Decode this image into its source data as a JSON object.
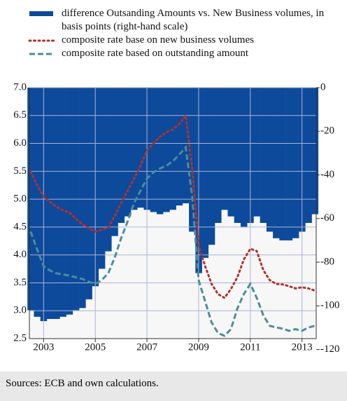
{
  "chart_data": {
    "type": "combo",
    "x": [
      2002.5,
      2002.75,
      2003,
      2003.25,
      2003.5,
      2003.75,
      2004,
      2004.25,
      2004.5,
      2004.75,
      2005,
      2005.25,
      2005.5,
      2005.75,
      2006,
      2006.25,
      2006.5,
      2006.75,
      2007,
      2007.25,
      2007.5,
      2007.75,
      2008,
      2008.25,
      2008.5,
      2008.75,
      2009,
      2009.25,
      2009.5,
      2009.75,
      2010,
      2010.25,
      2010.5,
      2010.75,
      2011,
      2011.25,
      2011.5,
      2011.75,
      2012,
      2012.25,
      2012.5,
      2012.75,
      2013,
      2013.25,
      2013.5
    ],
    "series": [
      {
        "name": "difference Outsanding Amounts vs. New Business volumes, in basis points (right-hand scale)",
        "type": "bar",
        "axis": "y2",
        "color": "#0d4a9b",
        "values": [
          -102,
          -105,
          -107,
          -106,
          -106,
          -105,
          -104,
          -102,
          -101,
          -97,
          -91,
          -83,
          -75,
          -68,
          -62,
          -59,
          -56,
          -55,
          -56,
          -57,
          -58,
          -57,
          -56,
          -54,
          -53,
          -66,
          -85,
          -78,
          -72,
          -62,
          -56,
          -59,
          -62,
          -64,
          -62,
          -59,
          -62,
          -66,
          -69,
          -70,
          -70,
          -69,
          -66,
          -62,
          -58
        ]
      },
      {
        "name": "composite rate base on new business volumes",
        "type": "line",
        "dash": "dotted",
        "color": "#b3302a",
        "values": [
          5.49,
          5.25,
          5.05,
          4.95,
          4.86,
          4.8,
          4.76,
          4.65,
          4.55,
          4.48,
          4.42,
          4.45,
          4.49,
          4.7,
          4.93,
          5.15,
          5.37,
          5.6,
          5.87,
          6.0,
          6.12,
          6.2,
          6.25,
          6.35,
          6.5,
          5.55,
          4.17,
          3.8,
          3.48,
          3.3,
          3.23,
          3.39,
          3.6,
          3.92,
          4.11,
          4.07,
          3.73,
          3.55,
          3.48,
          3.47,
          3.44,
          3.4,
          3.42,
          3.4,
          3.36
        ]
      },
      {
        "name": "composite rate based on outstanding amount",
        "type": "line",
        "dash": "dashed",
        "color": "#4b8d9c",
        "values": [
          4.42,
          4.1,
          3.8,
          3.72,
          3.67,
          3.65,
          3.63,
          3.6,
          3.57,
          3.52,
          3.48,
          3.55,
          3.67,
          3.95,
          4.3,
          4.6,
          4.93,
          5.15,
          5.37,
          5.48,
          5.55,
          5.6,
          5.68,
          5.8,
          5.93,
          5.05,
          3.55,
          3.17,
          2.79,
          2.6,
          2.55,
          2.67,
          3.04,
          3.3,
          3.48,
          3.23,
          2.92,
          2.73,
          2.7,
          2.68,
          2.64,
          2.67,
          2.64,
          2.7,
          2.73
        ]
      }
    ],
    "xlim": [
      2002.45,
      2013.55
    ],
    "xticks": [
      2003,
      2005,
      2007,
      2009,
      2011,
      2013
    ],
    "ylim": [
      2.5,
      7
    ],
    "yticks": [
      {
        "value": 7,
        "label": "7.0"
      },
      6.5,
      {
        "value": 6,
        "label": "6.0"
      },
      5.5,
      {
        "value": 5,
        "label": "5.0"
      },
      4.5,
      {
        "value": 4,
        "label": "4.0"
      },
      3.5,
      {
        "value": 3,
        "label": "3.0"
      },
      2.5
    ],
    "y2lim": [
      -115,
      0
    ],
    "y2ticks": [
      0,
      -20,
      -40,
      -60,
      -80,
      -100,
      -120
    ],
    "grid": true,
    "source": "Sources: ECB and own calculations."
  }
}
